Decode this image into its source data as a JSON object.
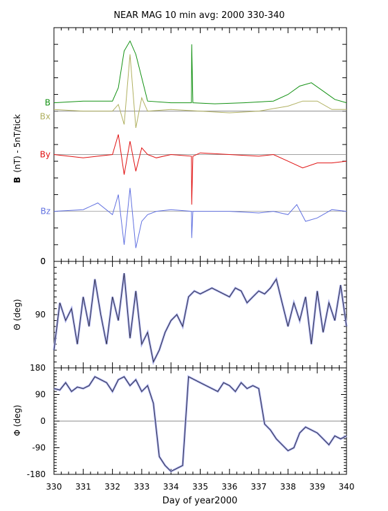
{
  "chart_data": {
    "type": "line",
    "title": "NEAR MAG 10 min avg: 2000 330-340",
    "xlabel": "Day of year2000",
    "x_ticks": [
      "330",
      "331",
      "332",
      "333",
      "334",
      "335",
      "336",
      "337",
      "338",
      "339",
      "340"
    ],
    "xlim": [
      330,
      340
    ],
    "panels": [
      {
        "id": "field",
        "ylabel_bold": "B",
        "ylabel_rest": "(nT) - 5nT/tick",
        "y_ticks": [
          "0"
        ],
        "series": [
          {
            "name": "B",
            "color": "#109010",
            "x": [
              330.0,
              331.0,
              332.0,
              332.2,
              332.4,
              332.6,
              332.8,
              333.0,
              333.2,
              334.0,
              334.7,
              334.71,
              334.75,
              335.5,
              336.5,
              337.5,
              338.0,
              338.4,
              338.8,
              339.2,
              339.6,
              340.0
            ],
            "y": [
              47.5,
              48.0,
              48.0,
              52.0,
              63.0,
              66.0,
              62.0,
              55.0,
              48.0,
              47.5,
              47.5,
              65.0,
              47.5,
              47.2,
              47.5,
              48.0,
              50.0,
              52.5,
              53.5,
              51.0,
              48.5,
              47.5
            ]
          },
          {
            "name": "Bx",
            "color": "#b0b060",
            "x": [
              330.0,
              331.0,
              332.0,
              332.2,
              332.4,
              332.6,
              332.8,
              333.0,
              333.2,
              334.0,
              335.0,
              336.0,
              337.0,
              338.0,
              338.5,
              339.0,
              339.5,
              340.0
            ],
            "y": [
              45.5,
              45.0,
              45.0,
              47.0,
              41.0,
              62.0,
              40.0,
              49.0,
              45.0,
              45.5,
              45.0,
              44.5,
              45.0,
              46.5,
              48.0,
              48.0,
              45.5,
              45.5
            ]
          },
          {
            "name": "By",
            "color": "#e01010",
            "x": [
              330.0,
              331.0,
              331.5,
              332.0,
              332.2,
              332.4,
              332.6,
              332.8,
              333.0,
              333.2,
              333.5,
              334.0,
              334.7,
              334.71,
              334.75,
              335.0,
              336.0,
              337.0,
              337.5,
              338.0,
              338.5,
              339.0,
              339.5,
              340.0
            ],
            "y": [
              32.0,
              31.0,
              31.5,
              32.0,
              38.0,
              26.0,
              36.0,
              27.0,
              34.0,
              32.0,
              31.0,
              32.0,
              31.5,
              17.0,
              31.5,
              32.5,
              32.0,
              31.5,
              32.0,
              30.0,
              28.0,
              29.5,
              29.5,
              30.0
            ]
          },
          {
            "name": "Bz",
            "color": "#6070e0",
            "x": [
              330.0,
              331.0,
              331.5,
              332.0,
              332.2,
              332.4,
              332.6,
              332.8,
              333.0,
              333.2,
              333.5,
              334.0,
              334.7,
              334.71,
              334.75,
              335.0,
              336.0,
              337.0,
              337.5,
              338.0,
              338.3,
              338.6,
              339.0,
              339.5,
              340.0
            ],
            "y": [
              15.0,
              15.5,
              17.5,
              14.0,
              20.0,
              5.0,
              22.0,
              4.0,
              12.0,
              14.0,
              15.0,
              15.5,
              15.0,
              7.0,
              15.0,
              15.0,
              15.0,
              14.5,
              15.0,
              14.0,
              17.0,
              12.0,
              13.0,
              15.5,
              15.0
            ]
          }
        ]
      },
      {
        "id": "theta",
        "ylabel": "Θ (deg)",
        "y_ticks": [
          "0",
          "90"
        ],
        "series": [
          {
            "name": "Θ",
            "color": "#303048",
            "x": [
              330.0,
              330.2,
              330.4,
              330.6,
              330.8,
              331.0,
              331.2,
              331.4,
              331.6,
              331.8,
              332.0,
              332.2,
              332.4,
              332.6,
              332.8,
              333.0,
              333.2,
              333.4,
              333.6,
              333.8,
              334.0,
              334.2,
              334.4,
              334.6,
              334.8,
              335.0,
              335.2,
              335.4,
              335.6,
              335.8,
              336.0,
              336.2,
              336.4,
              336.6,
              336.8,
              337.0,
              337.2,
              337.4,
              337.6,
              337.8,
              338.0,
              338.2,
              338.4,
              338.6,
              338.8,
              339.0,
              339.2,
              339.4,
              339.6,
              339.8,
              340.0
            ],
            "y": [
              150,
              70,
              100,
              80,
              140,
              60,
              110,
              30,
              90,
              140,
              60,
              100,
              20,
              130,
              50,
              140,
              120,
              170,
              150,
              120,
              100,
              90,
              110,
              60,
              50,
              55,
              50,
              45,
              50,
              55,
              60,
              45,
              50,
              70,
              60,
              50,
              55,
              45,
              30,
              70,
              110,
              70,
              100,
              60,
              140,
              50,
              120,
              70,
              100,
              40,
              110
            ]
          }
        ]
      },
      {
        "id": "phi",
        "ylabel": "Φ (deg)",
        "y_ticks": [
          "180",
          "90",
          "0",
          "-90",
          "-180"
        ],
        "series": [
          {
            "name": "Φ",
            "color": "#303048",
            "x": [
              330.0,
              330.2,
              330.4,
              330.6,
              330.8,
              331.0,
              331.2,
              331.4,
              331.6,
              331.8,
              332.0,
              332.2,
              332.4,
              332.6,
              332.8,
              333.0,
              333.2,
              333.4,
              333.6,
              333.8,
              334.0,
              334.2,
              334.4,
              334.6,
              334.8,
              335.0,
              335.2,
              335.4,
              335.6,
              335.8,
              336.0,
              336.2,
              336.4,
              336.6,
              336.8,
              337.0,
              337.2,
              337.4,
              337.6,
              337.8,
              338.0,
              338.2,
              338.4,
              338.6,
              338.8,
              339.0,
              339.2,
              339.4,
              339.6,
              339.8,
              340.0
            ],
            "y": [
              110,
              105,
              130,
              100,
              115,
              110,
              120,
              150,
              140,
              130,
              100,
              140,
              150,
              120,
              140,
              100,
              120,
              60,
              -120,
              -150,
              -170,
              -160,
              -150,
              150,
              140,
              130,
              120,
              110,
              100,
              130,
              120,
              100,
              130,
              110,
              120,
              110,
              -10,
              -30,
              -60,
              -80,
              -100,
              -90,
              -40,
              -20,
              -30,
              -40,
              -60,
              -80,
              -50,
              -60,
              -50
            ]
          }
        ]
      }
    ]
  }
}
